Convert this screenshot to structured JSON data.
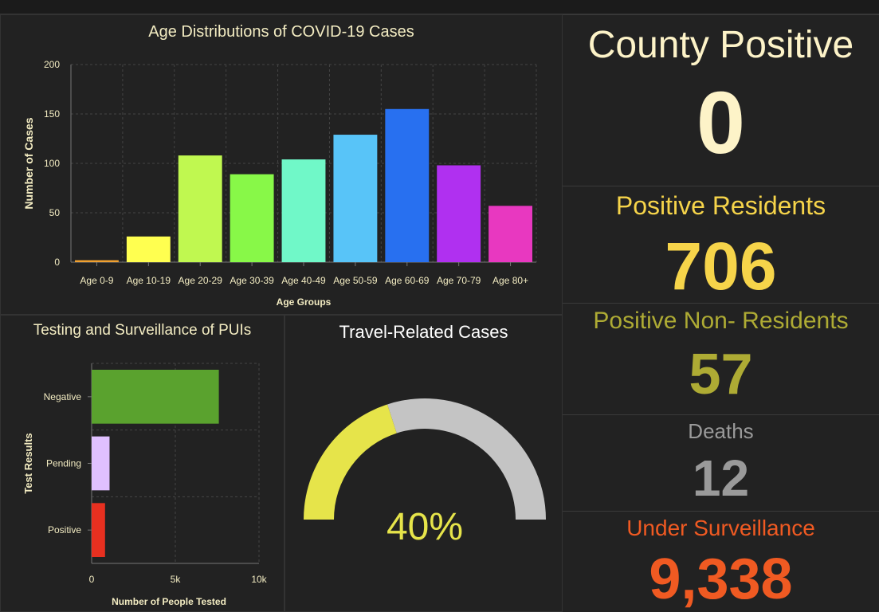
{
  "chart_data": [
    {
      "type": "bar",
      "title": "Age Distributions of COVID-19 Cases",
      "xlabel": "Age Groups",
      "ylabel": "Number of Cases",
      "categories": [
        "Age 0-9",
        "Age 10-19",
        "Age 20-29",
        "Age 30-39",
        "Age 40-49",
        "Age 50-59",
        "Age 60-69",
        "Age 70-79",
        "Age 80+"
      ],
      "values": [
        2,
        26,
        108,
        89,
        104,
        129,
        155,
        98,
        57
      ],
      "colors": [
        "#f0a030",
        "#ffff50",
        "#c0f850",
        "#88f848",
        "#70f8c8",
        "#58c4f8",
        "#2870f0",
        "#b030f0",
        "#e838c0"
      ],
      "ylim": [
        0,
        200
      ],
      "yticks": [
        0,
        50,
        100,
        150,
        200
      ],
      "grid": true
    },
    {
      "type": "bar",
      "orientation": "horizontal",
      "title": "Testing and Surveillance of PUIs",
      "xlabel": "Number of People Tested",
      "ylabel": "Test Results",
      "categories": [
        "Negative",
        "Pending",
        "Positive"
      ],
      "values": [
        7600,
        1070,
        800
      ],
      "colors": [
        "#5aa22e",
        "#e0c0ff",
        "#e83020"
      ],
      "xlim": [
        0,
        10000
      ],
      "xticks": [
        {
          "v": 0,
          "label": "0"
        },
        {
          "v": 5000,
          "label": "5k"
        },
        {
          "v": 10000,
          "label": "10k"
        }
      ],
      "grid": true
    },
    {
      "type": "gauge",
      "title": "Travel-Related Cases",
      "value": 40,
      "label": "40%",
      "fill_color": "#e6e44a",
      "track_color": "#c4c4c4"
    }
  ],
  "indicators": [
    {
      "label": "County Positive",
      "value": "0",
      "color": "#fdf3c8"
    },
    {
      "label": "Positive Residents",
      "value": "706",
      "color": "#f6d44a"
    },
    {
      "label": "Positive Non- Residents",
      "value": "57",
      "color": "#aeab34"
    },
    {
      "label": "Deaths",
      "value": "12",
      "color": "#9a9a9a"
    },
    {
      "label": "Under Surveillance",
      "value": "9,338",
      "color": "#f05a22"
    }
  ]
}
